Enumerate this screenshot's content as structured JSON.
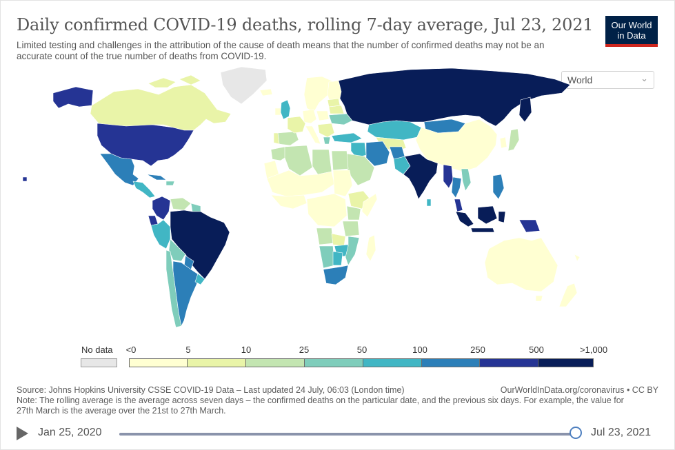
{
  "title": "Daily confirmed COVID-19 deaths, rolling 7-day average, Jul 23, 2021",
  "subtitle": "Limited testing and challenges in the attribution of the cause of death means that the number of confirmed deaths may not be an accurate count of the true number of deaths from COVID-19.",
  "logo": {
    "line1": "Our World",
    "line2": "in Data"
  },
  "region_select": {
    "value": "World"
  },
  "legend": {
    "no_data_label": "No data",
    "ticks": [
      "<0",
      "5",
      "10",
      "25",
      "50",
      "100",
      "250",
      "500",
      ">1,000"
    ],
    "colors": [
      "#ffffd2",
      "#e9f4a8",
      "#c3e5b1",
      "#7fcdbb",
      "#41b6c4",
      "#2c7fb8",
      "#253494",
      "#081d58"
    ],
    "no_data_color": "#e7e7e7"
  },
  "source": "Source: Johns Hopkins University CSSE COVID-19 Data – Last updated 24 July, 06:03 (London time)",
  "credit": "OurWorldInData.org/coronavirus • CC BY",
  "note": "Note: The rolling average is the average across seven days – the confirmed deaths on the particular date, and the previous six days. For example, the value for 27th March is the average over the 21st to 27th March.",
  "timeline": {
    "start": "Jan 25, 2020",
    "end": "Jul 23, 2021",
    "progress": 1.0
  }
}
